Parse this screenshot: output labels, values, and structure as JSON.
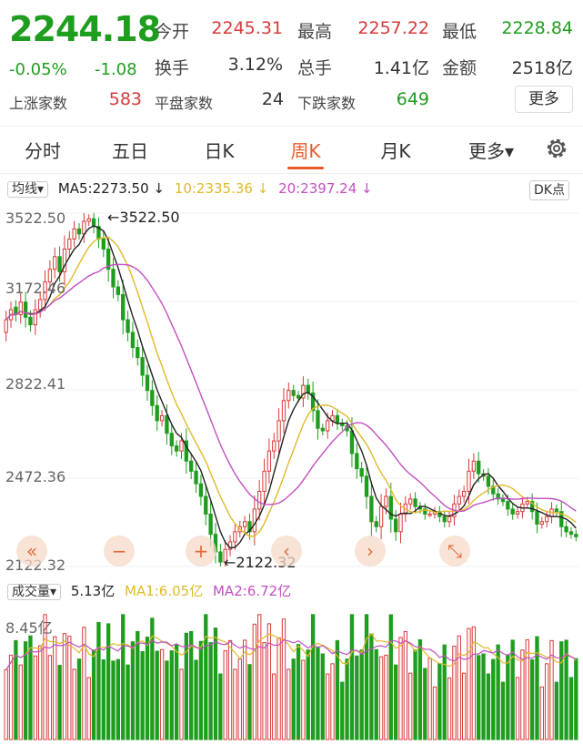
{
  "quote": {
    "price": "2244.18",
    "change_pct": "-0.05%",
    "change": "-1.08",
    "open_label": "今开",
    "open": "2245.31",
    "high_label": "最高",
    "high": "2257.22",
    "low_label": "最低",
    "low": "2228.84",
    "turnover_label": "换手",
    "turnover": "3.12%",
    "volume_label": "总手",
    "volume": "1.41亿",
    "amount_label": "金额",
    "amount": "2518亿",
    "up_label": "上涨家数",
    "up": "583",
    "flat_label": "平盘家数",
    "flat": "24",
    "down_label": "下跌家数",
    "down": "649",
    "more_label": "更多"
  },
  "tabs": [
    "分时",
    "五日",
    "日K",
    "周K",
    "月K",
    "更多▾"
  ],
  "active_tab": "周K",
  "ma_bar": {
    "mode": "均线",
    "ma5": "MA5:2273.50",
    "ma10": "10:2335.36",
    "ma20": "20:2397.24",
    "dk": "DK点"
  },
  "price_axis": {
    "labels": [
      "3522.50",
      "3172.46",
      "2822.41",
      "2472.36",
      "2122.32"
    ],
    "max_marker": "←3522.50",
    "min_marker": "←2122.32"
  },
  "volume_bar": {
    "mode": "成交量",
    "vol": "5.13亿",
    "ma1": "MA1:6.05亿",
    "ma2": "MA2:6.72亿",
    "axis_label": "8.45亿"
  },
  "controls": [
    "«",
    "−",
    "+",
    "‹",
    "›",
    "⤡"
  ],
  "colors": {
    "up": "#d83a3a",
    "down": "#1f9d1f",
    "ma5": "#222222",
    "ma10": "#e0b92a",
    "ma20": "#c24fc2",
    "accent": "#e85a2a"
  },
  "chart_data": {
    "type": "candlestick",
    "ylim": [
      2122.32,
      3522.5
    ],
    "closes": [
      3100,
      3140,
      3120,
      3170,
      3110,
      3080,
      3140,
      3180,
      3250,
      3300,
      3350,
      3290,
      3380,
      3420,
      3460,
      3440,
      3490,
      3500,
      3470,
      3420,
      3380,
      3300,
      3230,
      3200,
      3100,
      3050,
      2990,
      2950,
      2880,
      2820,
      2760,
      2700,
      2720,
      2650,
      2600,
      2580,
      2620,
      2540,
      2500,
      2450,
      2400,
      2330,
      2250,
      2180,
      2140,
      2190,
      2220,
      2260,
      2280,
      2300,
      2260,
      2350,
      2420,
      2500,
      2580,
      2620,
      2700,
      2780,
      2820,
      2800,
      2790,
      2840,
      2810,
      2740,
      2670,
      2660,
      2700,
      2720,
      2690,
      2680,
      2660,
      2570,
      2510,
      2480,
      2400,
      2300,
      2280,
      2360,
      2400,
      2310,
      2260,
      2330,
      2370,
      2390,
      2360,
      2350,
      2330,
      2330,
      2340,
      2320,
      2300,
      2320,
      2370,
      2400,
      2420,
      2500,
      2540,
      2490,
      2480,
      2440,
      2410,
      2390,
      2380,
      2350,
      2330,
      2340,
      2370,
      2380,
      2340,
      2290,
      2300,
      2320,
      2350,
      2340,
      2280,
      2260,
      2250,
      2240
    ],
    "opens": [
      3050,
      3100,
      3150,
      3120,
      3170,
      3110,
      3080,
      3140,
      3180,
      3250,
      3300,
      3350,
      3290,
      3380,
      3420,
      3460,
      3440,
      3490,
      3500,
      3470,
      3420,
      3380,
      3300,
      3230,
      3200,
      3100,
      3050,
      2990,
      2950,
      2880,
      2820,
      2760,
      2700,
      2720,
      2650,
      2600,
      2580,
      2620,
      2540,
      2500,
      2450,
      2400,
      2330,
      2250,
      2180,
      2140,
      2190,
      2220,
      2260,
      2280,
      2300,
      2260,
      2350,
      2420,
      2500,
      2580,
      2620,
      2700,
      2780,
      2820,
      2800,
      2790,
      2840,
      2810,
      2740,
      2670,
      2660,
      2700,
      2720,
      2690,
      2680,
      2660,
      2570,
      2510,
      2480,
      2400,
      2300,
      2280,
      2360,
      2400,
      2310,
      2260,
      2330,
      2370,
      2390,
      2360,
      2350,
      2330,
      2330,
      2340,
      2320,
      2300,
      2320,
      2370,
      2400,
      2420,
      2500,
      2540,
      2490,
      2480,
      2440,
      2410,
      2390,
      2380,
      2350,
      2330,
      2340,
      2370,
      2380,
      2340,
      2290,
      2300,
      2320,
      2350,
      2340,
      2280,
      2260,
      2250
    ],
    "volume_ylim": [
      0,
      8.45
    ]
  }
}
